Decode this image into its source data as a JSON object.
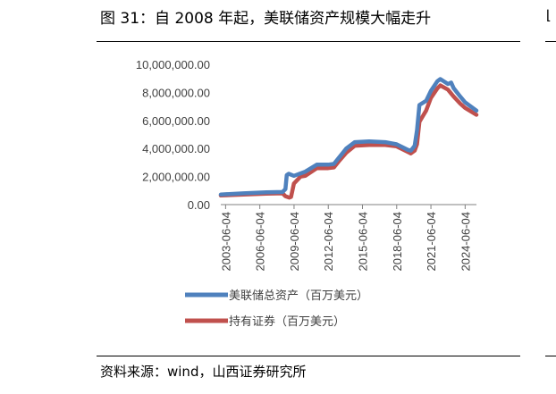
{
  "figure": {
    "title": "图 31：自 2008 年起，美联储资产规模大幅走升",
    "source": "资料来源：wind，山西证券研究所"
  },
  "chart_data": {
    "type": "line",
    "title": "",
    "xlabel": "",
    "ylabel": "",
    "ylim": [
      0,
      10000000
    ],
    "yticks": [
      "10,000,000.00",
      "8,000,000.00",
      "6,000,000.00",
      "4,000,000.00",
      "2,000,000.00",
      "0.00"
    ],
    "xticks": [
      "2003-06-04",
      "2006-06-04",
      "2009-06-04",
      "2012-06-04",
      "2015-06-04",
      "2018-06-04",
      "2021-06-04",
      "2024-06-04"
    ],
    "xlim": [
      "2003-01-01",
      "2025-06-01"
    ],
    "grid": false,
    "legend_position": "bottom-left",
    "series": [
      {
        "name": "美联储总资产（百万美元）",
        "color": "#4F81BD",
        "points": [
          [
            "2003-01-01",
            720000
          ],
          [
            "2005-01-01",
            800000
          ],
          [
            "2007-01-01",
            880000
          ],
          [
            "2008-06-01",
            900000
          ],
          [
            "2008-09-01",
            1100000
          ],
          [
            "2008-10-15",
            2100000
          ],
          [
            "2008-12-15",
            2200000
          ],
          [
            "2009-06-01",
            2050000
          ],
          [
            "2010-06-01",
            2350000
          ],
          [
            "2011-06-01",
            2850000
          ],
          [
            "2012-06-01",
            2850000
          ],
          [
            "2012-12-01",
            2900000
          ],
          [
            "2013-06-01",
            3400000
          ],
          [
            "2014-01-01",
            4000000
          ],
          [
            "2014-10-01",
            4450000
          ],
          [
            "2016-01-01",
            4500000
          ],
          [
            "2017-06-01",
            4450000
          ],
          [
            "2018-06-01",
            4300000
          ],
          [
            "2019-06-01",
            3900000
          ],
          [
            "2019-09-01",
            3850000
          ],
          [
            "2020-01-01",
            4200000
          ],
          [
            "2020-03-15",
            5300000
          ],
          [
            "2020-06-01",
            7100000
          ],
          [
            "2021-01-01",
            7400000
          ],
          [
            "2021-06-01",
            8100000
          ],
          [
            "2022-01-01",
            8800000
          ],
          [
            "2022-04-01",
            8950000
          ],
          [
            "2022-12-01",
            8600000
          ],
          [
            "2023-03-15",
            8700000
          ],
          [
            "2023-06-01",
            8300000
          ],
          [
            "2024-01-01",
            7700000
          ],
          [
            "2024-06-01",
            7300000
          ],
          [
            "2025-06-01",
            6700000
          ]
        ]
      },
      {
        "name": "持有证券（百万美元）",
        "color": "#C0504D",
        "points": [
          [
            "2003-01-01",
            650000
          ],
          [
            "2005-01-01",
            720000
          ],
          [
            "2007-01-01",
            780000
          ],
          [
            "2008-06-01",
            800000
          ],
          [
            "2008-09-01",
            600000
          ],
          [
            "2009-01-01",
            500000
          ],
          [
            "2009-03-01",
            550000
          ],
          [
            "2009-06-01",
            1500000
          ],
          [
            "2010-01-01",
            2000000
          ],
          [
            "2010-06-01",
            2050000
          ],
          [
            "2011-06-01",
            2600000
          ],
          [
            "2012-06-01",
            2600000
          ],
          [
            "2012-12-01",
            2650000
          ],
          [
            "2013-06-01",
            3150000
          ],
          [
            "2014-01-01",
            3700000
          ],
          [
            "2014-10-01",
            4200000
          ],
          [
            "2016-01-01",
            4250000
          ],
          [
            "2017-06-01",
            4250000
          ],
          [
            "2018-06-01",
            4150000
          ],
          [
            "2019-06-01",
            3750000
          ],
          [
            "2019-09-01",
            3650000
          ],
          [
            "2020-01-01",
            3850000
          ],
          [
            "2020-03-15",
            4300000
          ],
          [
            "2020-06-01",
            5900000
          ],
          [
            "2021-01-01",
            6700000
          ],
          [
            "2021-06-01",
            7600000
          ],
          [
            "2022-01-01",
            8300000
          ],
          [
            "2022-04-01",
            8500000
          ],
          [
            "2022-12-01",
            8200000
          ],
          [
            "2023-06-01",
            7700000
          ],
          [
            "2024-01-01",
            7200000
          ],
          [
            "2024-06-01",
            6900000
          ],
          [
            "2025-06-01",
            6400000
          ]
        ]
      }
    ]
  }
}
